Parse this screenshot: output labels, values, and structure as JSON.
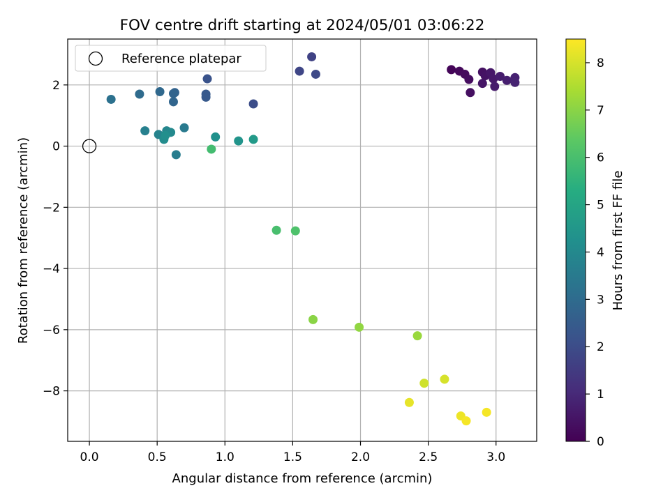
{
  "chart_data": {
    "type": "scatter",
    "title": "FOV centre drift starting at 2024/05/01 03:06:22",
    "xlabel": "Angular distance from reference (arcmin)",
    "ylabel": "Rotation from reference (arcmin)",
    "xlim": [
      -0.16,
      3.3
    ],
    "ylim": [
      -9.65,
      3.5
    ],
    "xticks": [
      "0.0",
      "0.5",
      "1.0",
      "1.5",
      "2.0",
      "2.5",
      "3.0"
    ],
    "xtick_values": [
      0,
      0.5,
      1.0,
      1.5,
      2.0,
      2.5,
      3.0
    ],
    "yticks": [
      "−8",
      "−6",
      "−4",
      "−2",
      "0",
      "2"
    ],
    "ytick_values": [
      -8,
      -6,
      -4,
      -2,
      0,
      2
    ],
    "grid": true,
    "legend": {
      "label": "Reference platepar",
      "placement": "top-left"
    },
    "reference_point": {
      "x": 0,
      "y": 0
    },
    "colorbar": {
      "label": "Hours from first FF file",
      "min": 0,
      "max": 8.5,
      "ticks": [
        "0",
        "1",
        "2",
        "3",
        "4",
        "5",
        "6",
        "7",
        "8"
      ],
      "tick_values": [
        0,
        1,
        2,
        3,
        4,
        5,
        6,
        7,
        8
      ],
      "colormap": "viridis"
    },
    "points": [
      {
        "x": 2.67,
        "y": 2.5,
        "hours": 0.1
      },
      {
        "x": 2.73,
        "y": 2.45,
        "hours": 0.2
      },
      {
        "x": 2.77,
        "y": 2.35,
        "hours": 0.25
      },
      {
        "x": 2.8,
        "y": 2.18,
        "hours": 0.3
      },
      {
        "x": 2.81,
        "y": 1.75,
        "hours": 0.35
      },
      {
        "x": 2.9,
        "y": 2.42,
        "hours": 0.4
      },
      {
        "x": 2.92,
        "y": 2.3,
        "hours": 0.45
      },
      {
        "x": 2.9,
        "y": 2.05,
        "hours": 0.5
      },
      {
        "x": 2.96,
        "y": 2.4,
        "hours": 0.55
      },
      {
        "x": 2.98,
        "y": 2.2,
        "hours": 0.6
      },
      {
        "x": 2.99,
        "y": 1.95,
        "hours": 0.65
      },
      {
        "x": 3.03,
        "y": 2.28,
        "hours": 0.7
      },
      {
        "x": 3.08,
        "y": 2.15,
        "hours": 0.75
      },
      {
        "x": 3.14,
        "y": 2.24,
        "hours": 0.8
      },
      {
        "x": 3.14,
        "y": 2.08,
        "hours": 0.85
      },
      {
        "x": 1.64,
        "y": 2.92,
        "hours": 1.7
      },
      {
        "x": 1.55,
        "y": 2.45,
        "hours": 1.8
      },
      {
        "x": 1.67,
        "y": 2.35,
        "hours": 1.9
      },
      {
        "x": 1.21,
        "y": 1.38,
        "hours": 2.0
      },
      {
        "x": 0.87,
        "y": 2.2,
        "hours": 2.2
      },
      {
        "x": 0.86,
        "y": 1.7,
        "hours": 2.4
      },
      {
        "x": 0.86,
        "y": 1.6,
        "hours": 2.4
      },
      {
        "x": 0.63,
        "y": 1.75,
        "hours": 2.7
      },
      {
        "x": 0.62,
        "y": 1.72,
        "hours": 2.75
      },
      {
        "x": 0.62,
        "y": 1.45,
        "hours": 2.8
      },
      {
        "x": 0.52,
        "y": 1.78,
        "hours": 2.9
      },
      {
        "x": 0.37,
        "y": 1.7,
        "hours": 3.0
      },
      {
        "x": 0.16,
        "y": 1.53,
        "hours": 3.2
      },
      {
        "x": 0.7,
        "y": 0.6,
        "hours": 3.5
      },
      {
        "x": 0.64,
        "y": -0.28,
        "hours": 3.6
      },
      {
        "x": 0.41,
        "y": 0.5,
        "hours": 3.7
      },
      {
        "x": 0.51,
        "y": 0.38,
        "hours": 3.8
      },
      {
        "x": 0.57,
        "y": 0.5,
        "hours": 3.9
      },
      {
        "x": 0.6,
        "y": 0.45,
        "hours": 4.0
      },
      {
        "x": 0.55,
        "y": 0.22,
        "hours": 4.1
      },
      {
        "x": 0.56,
        "y": 0.35,
        "hours": 4.2
      },
      {
        "x": 0.93,
        "y": 0.3,
        "hours": 4.3
      },
      {
        "x": 1.1,
        "y": 0.17,
        "hours": 4.4
      },
      {
        "x": 1.21,
        "y": 0.22,
        "hours": 4.6
      },
      {
        "x": 0.9,
        "y": -0.1,
        "hours": 5.9
      },
      {
        "x": 1.38,
        "y": -2.75,
        "hours": 6.0
      },
      {
        "x": 1.52,
        "y": -2.77,
        "hours": 6.1
      },
      {
        "x": 1.65,
        "y": -5.67,
        "hours": 7.0
      },
      {
        "x": 1.99,
        "y": -5.92,
        "hours": 7.1
      },
      {
        "x": 2.42,
        "y": -6.2,
        "hours": 7.2
      },
      {
        "x": 2.47,
        "y": -7.75,
        "hours": 7.9
      },
      {
        "x": 2.62,
        "y": -7.62,
        "hours": 8.0
      },
      {
        "x": 2.36,
        "y": -8.38,
        "hours": 8.2
      },
      {
        "x": 2.74,
        "y": -8.82,
        "hours": 8.3
      },
      {
        "x": 2.78,
        "y": -8.98,
        "hours": 8.4
      },
      {
        "x": 2.93,
        "y": -8.7,
        "hours": 8.4
      }
    ]
  }
}
